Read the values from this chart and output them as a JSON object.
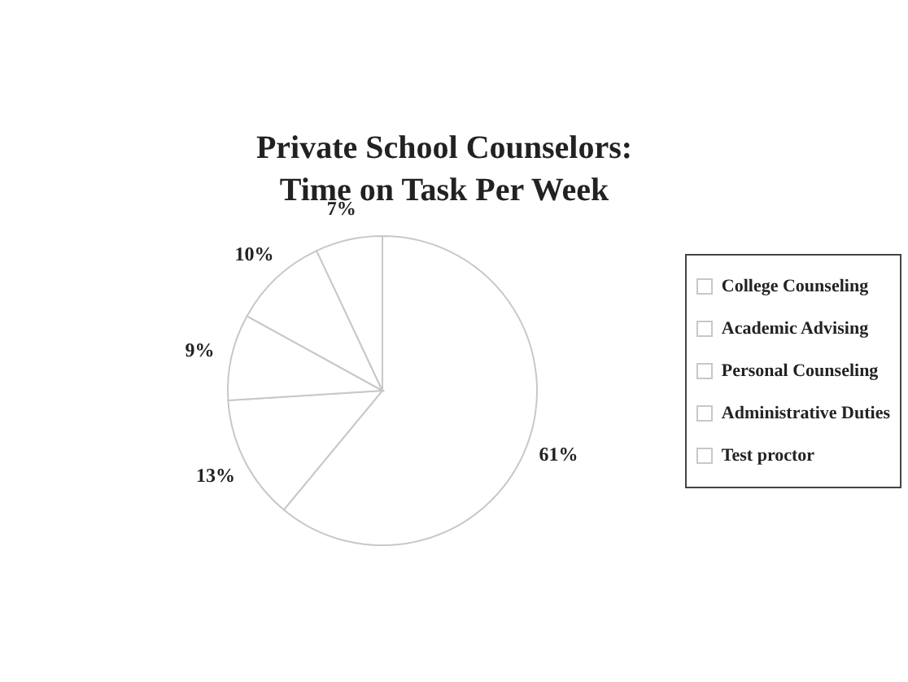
{
  "chart_data": {
    "type": "pie",
    "title": "Private School Counselors: Time on Task Per Week",
    "categories": [
      "College Counseling",
      "Academic Advising",
      "Personal Counseling",
      "Administrative Duties",
      "Test proctor"
    ],
    "values": [
      61,
      13,
      9,
      10,
      7
    ],
    "value_labels": [
      "61%",
      "13%",
      "9%",
      "10%",
      "7%"
    ],
    "colors": [
      "#ffffff",
      "#ffffff",
      "#ffffff",
      "#ffffff",
      "#ffffff"
    ],
    "legend": "right"
  }
}
